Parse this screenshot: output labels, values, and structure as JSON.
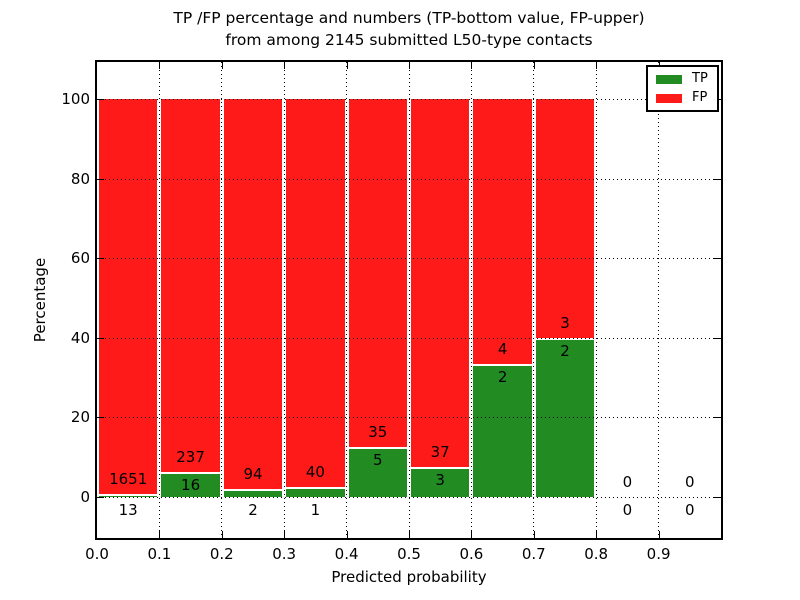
{
  "title": {
    "line1": "TP /FP percentage and numbers (TP-bottom value, FP-upper)",
    "line2": "from among 2145 submitted L50-type contacts"
  },
  "axes": {
    "xlabel": "Predicted probability",
    "ylabel": "Percentage",
    "x_ticks": [
      "0.0",
      "0.1",
      "0.2",
      "0.3",
      "0.4",
      "0.5",
      "0.6",
      "0.7",
      "0.8",
      "0.9"
    ],
    "y_ticks": [
      "0",
      "20",
      "40",
      "60",
      "80",
      "100"
    ]
  },
  "legend": {
    "items": [
      {
        "label": "TP",
        "color": "#228b22"
      },
      {
        "label": "FP",
        "color": "#ff1a1a"
      }
    ]
  },
  "colors": {
    "tp_green": "#228b22",
    "fp_red": "#ff1a1a",
    "bar_edge": "#ffffff",
    "grid": "#000000"
  },
  "chart_data": {
    "type": "bar",
    "stacked": true,
    "normalized": "each bar totals 100% of bin contacts",
    "title": "TP /FP percentage and numbers (TP-bottom value, FP-upper) from among 2145 submitted L50-type contacts",
    "xlabel": "Predicted probability",
    "ylabel": "Percentage",
    "xlim": [
      0.0,
      1.0
    ],
    "ylim": [
      -10.5,
      109.5
    ],
    "grid": true,
    "legend_position": "upper right",
    "bin_width": 0.1,
    "categories": [
      "0.0-0.1",
      "0.1-0.2",
      "0.2-0.3",
      "0.3-0.4",
      "0.4-0.5",
      "0.5-0.6",
      "0.6-0.7",
      "0.7-0.8",
      "0.8-0.9",
      "0.9-1.0"
    ],
    "series": [
      {
        "name": "TP",
        "color": "#228b22",
        "counts": [
          13,
          16,
          2,
          1,
          5,
          3,
          2,
          2,
          0,
          0
        ],
        "percent": [
          0.78,
          6.32,
          2.08,
          2.44,
          12.5,
          7.5,
          33.33,
          40.0,
          0,
          0
        ]
      },
      {
        "name": "FP",
        "color": "#ff1a1a",
        "counts": [
          1651,
          237,
          94,
          40,
          35,
          37,
          4,
          3,
          0,
          0
        ],
        "percent": [
          99.22,
          93.68,
          97.92,
          97.56,
          87.5,
          92.5,
          66.67,
          60.0,
          0,
          0
        ]
      }
    ],
    "total_contacts": 2145
  }
}
